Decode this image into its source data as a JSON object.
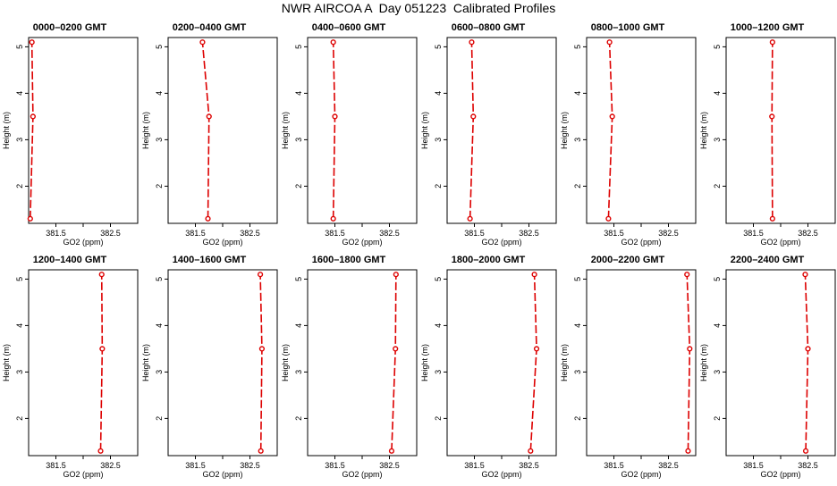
{
  "title": "NWR AIRCOA A  Day 051223  Calibrated Profiles",
  "style": {
    "series_color": "#dd0000",
    "axis_color": "#000000"
  },
  "chart_data": [
    {
      "type": "line",
      "title": "0000–0200 GMT",
      "xlabel": "GO2 (ppm)",
      "ylabel": "Height (m)",
      "xlim": [
        381.0,
        383.0
      ],
      "ylim": [
        1.2,
        5.2
      ],
      "xticks": [
        "381.5",
        "382.5"
      ],
      "yticks": [
        "2",
        "3",
        "4",
        "5"
      ],
      "series": [
        {
          "x": [
            381.03,
            381.08,
            381.06
          ],
          "y": [
            1.3,
            3.5,
            5.1
          ]
        }
      ]
    },
    {
      "type": "line",
      "title": "0200–0400 GMT",
      "xlabel": "GO2 (ppm)",
      "ylabel": "Height (m)",
      "xlim": [
        381.0,
        383.0
      ],
      "ylim": [
        1.2,
        5.2
      ],
      "xticks": [
        "381.5",
        "382.5"
      ],
      "yticks": [
        "2",
        "3",
        "4",
        "5"
      ],
      "series": [
        {
          "x": [
            381.73,
            381.75,
            381.63
          ],
          "y": [
            1.3,
            3.5,
            5.1
          ]
        }
      ]
    },
    {
      "type": "line",
      "title": "0400–0600 GMT",
      "xlabel": "GO2 (ppm)",
      "ylabel": "Height (m)",
      "xlim": [
        381.0,
        383.0
      ],
      "ylim": [
        1.2,
        5.2
      ],
      "xticks": [
        "381.5",
        "382.5"
      ],
      "yticks": [
        "2",
        "3",
        "4",
        "5"
      ],
      "series": [
        {
          "x": [
            381.47,
            381.5,
            381.47
          ],
          "y": [
            1.3,
            3.5,
            5.1
          ]
        }
      ]
    },
    {
      "type": "line",
      "title": "0600–0800 GMT",
      "xlabel": "GO2 (ppm)",
      "ylabel": "Height (m)",
      "xlim": [
        381.0,
        383.0
      ],
      "ylim": [
        1.2,
        5.2
      ],
      "xticks": [
        "381.5",
        "382.5"
      ],
      "yticks": [
        "2",
        "3",
        "4",
        "5"
      ],
      "series": [
        {
          "x": [
            381.42,
            381.48,
            381.45
          ],
          "y": [
            1.3,
            3.5,
            5.1
          ]
        }
      ]
    },
    {
      "type": "line",
      "title": "0800–1000 GMT",
      "xlabel": "GO2 (ppm)",
      "ylabel": "Height (m)",
      "xlim": [
        381.0,
        383.0
      ],
      "ylim": [
        1.2,
        5.2
      ],
      "xticks": [
        "381.5",
        "382.5"
      ],
      "yticks": [
        "2",
        "3",
        "4",
        "5"
      ],
      "series": [
        {
          "x": [
            381.4,
            381.47,
            381.42
          ],
          "y": [
            1.3,
            3.5,
            5.1
          ]
        }
      ]
    },
    {
      "type": "line",
      "title": "1000–1200 GMT",
      "xlabel": "GO2 (ppm)",
      "ylabel": "Height (m)",
      "xlim": [
        381.0,
        383.0
      ],
      "ylim": [
        1.2,
        5.2
      ],
      "xticks": [
        "381.5",
        "382.5"
      ],
      "yticks": [
        "2",
        "3",
        "4",
        "5"
      ],
      "series": [
        {
          "x": [
            381.85,
            381.84,
            381.85
          ],
          "y": [
            1.3,
            3.5,
            5.1
          ]
        }
      ]
    },
    {
      "type": "line",
      "title": "1200–1400 GMT",
      "xlabel": "GO2 (ppm)",
      "ylabel": "Height (m)",
      "xlim": [
        381.0,
        383.0
      ],
      "ylim": [
        1.2,
        5.2
      ],
      "xticks": [
        "381.5",
        "382.5"
      ],
      "yticks": [
        "2",
        "3",
        "4",
        "5"
      ],
      "series": [
        {
          "x": [
            382.32,
            382.35,
            382.34
          ],
          "y": [
            1.3,
            3.5,
            5.1
          ]
        }
      ]
    },
    {
      "type": "line",
      "title": "1400–1600 GMT",
      "xlabel": "GO2 (ppm)",
      "ylabel": "Height (m)",
      "xlim": [
        381.0,
        383.0
      ],
      "ylim": [
        1.2,
        5.2
      ],
      "xticks": [
        "381.5",
        "382.5"
      ],
      "yticks": [
        "2",
        "3",
        "4",
        "5"
      ],
      "series": [
        {
          "x": [
            382.7,
            382.72,
            382.69
          ],
          "y": [
            1.3,
            3.5,
            5.1
          ]
        }
      ]
    },
    {
      "type": "line",
      "title": "1600–1800 GMT",
      "xlabel": "GO2 (ppm)",
      "ylabel": "Height (m)",
      "xlim": [
        381.0,
        383.0
      ],
      "ylim": [
        1.2,
        5.2
      ],
      "xticks": [
        "381.5",
        "382.5"
      ],
      "yticks": [
        "2",
        "3",
        "4",
        "5"
      ],
      "series": [
        {
          "x": [
            382.54,
            382.61,
            382.62
          ],
          "y": [
            1.3,
            3.5,
            5.1
          ]
        }
      ]
    },
    {
      "type": "line",
      "title": "1800–2000 GMT",
      "xlabel": "GO2 (ppm)",
      "ylabel": "Height (m)",
      "xlim": [
        381.0,
        383.0
      ],
      "ylim": [
        1.2,
        5.2
      ],
      "xticks": [
        "381.5",
        "382.5"
      ],
      "yticks": [
        "2",
        "3",
        "4",
        "5"
      ],
      "series": [
        {
          "x": [
            382.53,
            382.64,
            382.6
          ],
          "y": [
            1.3,
            3.5,
            5.1
          ]
        }
      ]
    },
    {
      "type": "line",
      "title": "2000–2200 GMT",
      "xlabel": "GO2 (ppm)",
      "ylabel": "Height (m)",
      "xlim": [
        381.0,
        383.0
      ],
      "ylim": [
        1.2,
        5.2
      ],
      "xticks": [
        "381.5",
        "382.5"
      ],
      "yticks": [
        "2",
        "3",
        "4",
        "5"
      ],
      "series": [
        {
          "x": [
            382.86,
            382.89,
            382.84
          ],
          "y": [
            1.3,
            3.5,
            5.1
          ]
        }
      ]
    },
    {
      "type": "line",
      "title": "2200–2400 GMT",
      "xlabel": "GO2 (ppm)",
      "ylabel": "Height (m)",
      "xlim": [
        381.0,
        383.0
      ],
      "ylim": [
        1.2,
        5.2
      ],
      "xticks": [
        "381.5",
        "382.5"
      ],
      "yticks": [
        "2",
        "3",
        "4",
        "5"
      ],
      "series": [
        {
          "x": [
            382.46,
            382.5,
            382.45
          ],
          "y": [
            1.3,
            3.5,
            5.1
          ]
        }
      ]
    }
  ]
}
